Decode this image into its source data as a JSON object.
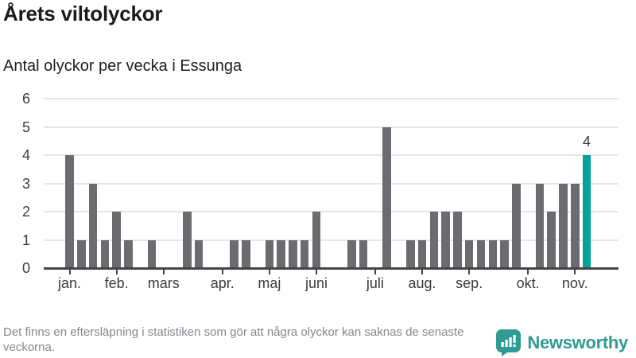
{
  "header": {
    "title": "Årets viltolyckor",
    "subtitle": "Antal olyckor per vecka i Essunga"
  },
  "footer": {
    "note": "Det finns en eftersläpning i statistiken som gör att några olyckor kan saknas de senaste veckorna.",
    "brand": "Newsworthy"
  },
  "colors": {
    "bar": "#6b6b70",
    "highlight": "#00a49b",
    "grid": "#e5e5e5",
    "axis": "#454548",
    "tick_text": "#3c3c3c",
    "muted_text": "#85888c",
    "brand": "#2f9b93"
  },
  "chart_data": {
    "type": "bar",
    "title": "Årets viltolyckor",
    "subtitle": "Antal olyckor per vecka i Essunga",
    "x_unit": "vecka",
    "values": [
      4,
      1,
      3,
      1,
      2,
      1,
      0,
      1,
      0,
      0,
      2,
      1,
      0,
      0,
      1,
      1,
      0,
      1,
      1,
      1,
      1,
      2,
      0,
      0,
      1,
      1,
      0,
      5,
      0,
      1,
      1,
      2,
      2,
      2,
      1,
      1,
      1,
      1,
      3,
      0,
      3,
      2,
      3,
      3,
      4
    ],
    "ylim": [
      0,
      6
    ],
    "yticks": [
      0,
      1,
      2,
      3,
      4,
      5,
      6
    ],
    "grid": true,
    "legend": "none",
    "month_ticks": [
      {
        "week_index": 0,
        "label": "jan."
      },
      {
        "week_index": 4,
        "label": "feb."
      },
      {
        "week_index": 8,
        "label": "mars"
      },
      {
        "week_index": 13,
        "label": "apr."
      },
      {
        "week_index": 17,
        "label": "maj"
      },
      {
        "week_index": 21,
        "label": "juni"
      },
      {
        "week_index": 26,
        "label": "juli"
      },
      {
        "week_index": 30,
        "label": "aug."
      },
      {
        "week_index": 34,
        "label": "sep."
      },
      {
        "week_index": 39,
        "label": "okt."
      },
      {
        "week_index": 43,
        "label": "nov."
      }
    ],
    "highlight": {
      "index": 44,
      "value_label": "4"
    }
  }
}
